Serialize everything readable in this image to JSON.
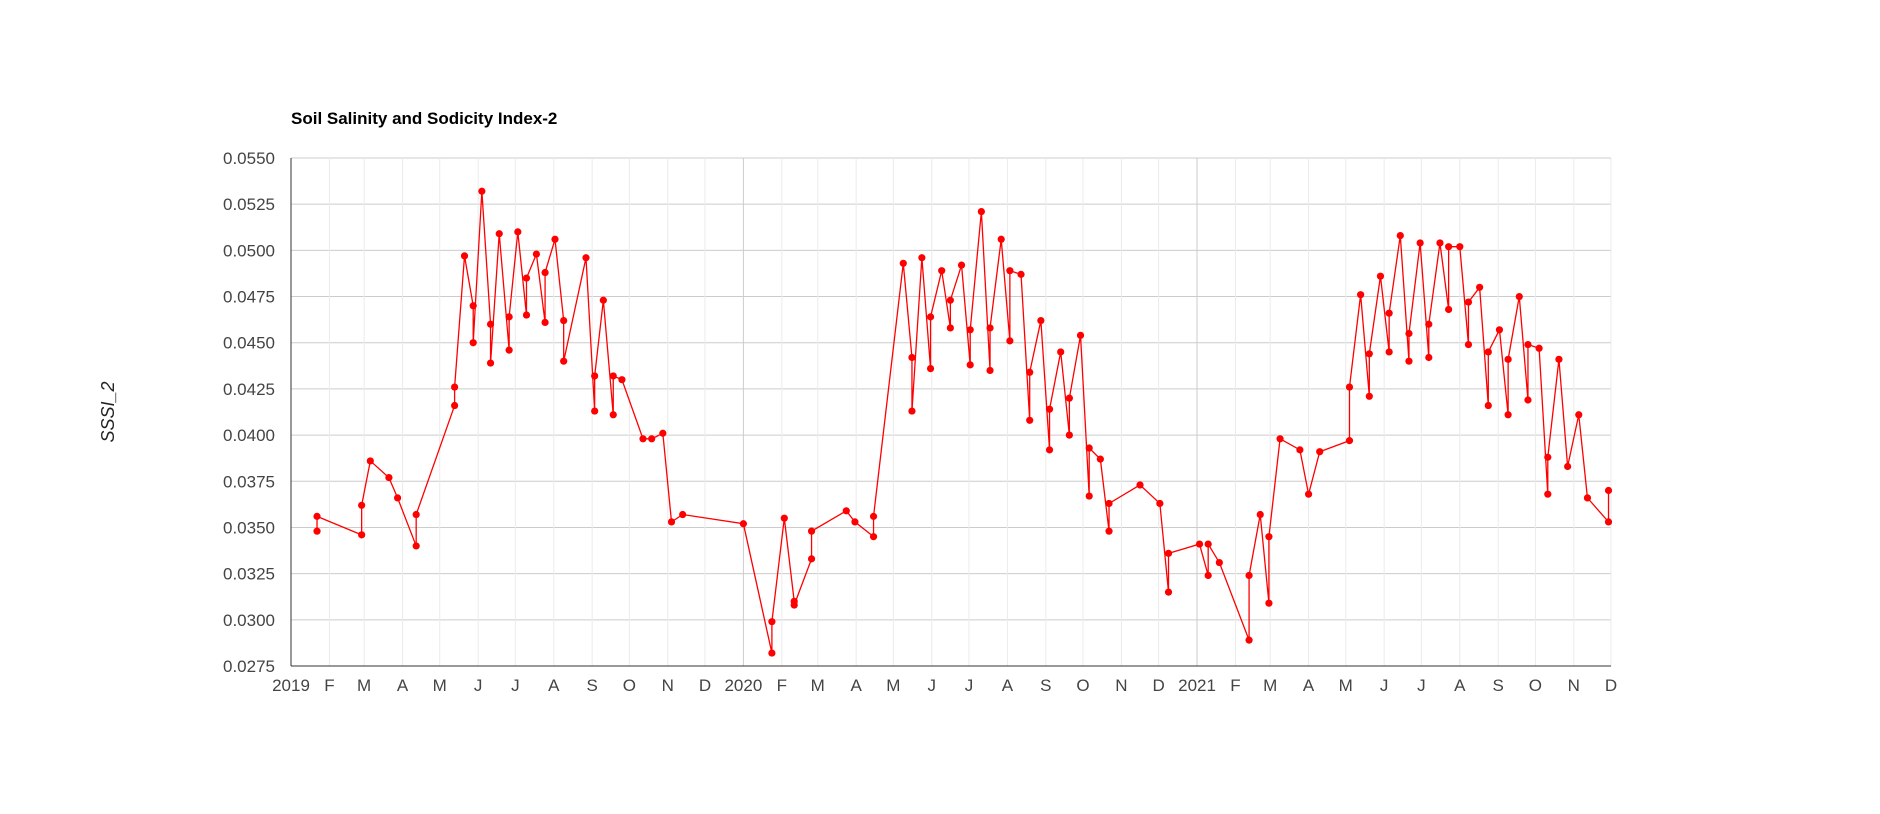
{
  "chart_data": {
    "type": "line",
    "title": "Soil Salinity and Sodicity Index-2",
    "xlabel": "",
    "ylabel": "SSSI_2",
    "ylim": [
      0.0275,
      0.055
    ],
    "yticks": [
      "0.0550",
      "0.0525",
      "0.0500",
      "0.0475",
      "0.0450",
      "0.0425",
      "0.0400",
      "0.0375",
      "0.0350",
      "0.0325",
      "0.0300",
      "0.0275"
    ],
    "xlim": [
      "2019-01-01",
      "2021-12-01"
    ],
    "xticks": [
      {
        "date": "2019-01-01",
        "label": "2019"
      },
      {
        "date": "2019-02-01",
        "label": "F"
      },
      {
        "date": "2019-03-01",
        "label": "M"
      },
      {
        "date": "2019-04-01",
        "label": "A"
      },
      {
        "date": "2019-05-01",
        "label": "M"
      },
      {
        "date": "2019-06-01",
        "label": "J"
      },
      {
        "date": "2019-07-01",
        "label": "J"
      },
      {
        "date": "2019-08-01",
        "label": "A"
      },
      {
        "date": "2019-09-01",
        "label": "S"
      },
      {
        "date": "2019-10-01",
        "label": "O"
      },
      {
        "date": "2019-11-01",
        "label": "N"
      },
      {
        "date": "2019-12-01",
        "label": "D"
      },
      {
        "date": "2020-01-01",
        "label": "2020"
      },
      {
        "date": "2020-02-01",
        "label": "F"
      },
      {
        "date": "2020-03-01",
        "label": "M"
      },
      {
        "date": "2020-04-01",
        "label": "A"
      },
      {
        "date": "2020-05-01",
        "label": "M"
      },
      {
        "date": "2020-06-01",
        "label": "J"
      },
      {
        "date": "2020-07-01",
        "label": "J"
      },
      {
        "date": "2020-08-01",
        "label": "A"
      },
      {
        "date": "2020-09-01",
        "label": "S"
      },
      {
        "date": "2020-10-01",
        "label": "O"
      },
      {
        "date": "2020-11-01",
        "label": "N"
      },
      {
        "date": "2020-12-01",
        "label": "D"
      },
      {
        "date": "2021-01-01",
        "label": "2021"
      },
      {
        "date": "2021-02-01",
        "label": "F"
      },
      {
        "date": "2021-03-01",
        "label": "M"
      },
      {
        "date": "2021-04-01",
        "label": "A"
      },
      {
        "date": "2021-05-01",
        "label": "M"
      },
      {
        "date": "2021-06-01",
        "label": "J"
      },
      {
        "date": "2021-07-01",
        "label": "J"
      },
      {
        "date": "2021-08-01",
        "label": "A"
      },
      {
        "date": "2021-09-01",
        "label": "S"
      },
      {
        "date": "2021-10-01",
        "label": "O"
      },
      {
        "date": "2021-11-01",
        "label": "N"
      },
      {
        "date": "2021-12-01",
        "label": "D"
      }
    ],
    "grid": true,
    "legend": "none",
    "series": [
      {
        "color": "#ff0000",
        "points": [
          [
            "2019-01-22",
            0.0348
          ],
          [
            "2019-01-22",
            0.0356
          ],
          [
            "2019-02-27",
            0.0346
          ],
          [
            "2019-02-27",
            0.0362
          ],
          [
            "2019-03-06",
            0.0386
          ],
          [
            "2019-03-21",
            0.0377
          ],
          [
            "2019-03-28",
            0.0366
          ],
          [
            "2019-04-12",
            0.034
          ],
          [
            "2019-04-12",
            0.0357
          ],
          [
            "2019-05-13",
            0.0416
          ],
          [
            "2019-05-13",
            0.0426
          ],
          [
            "2019-05-21",
            0.0497
          ],
          [
            "2019-05-28",
            0.047
          ],
          [
            "2019-05-28",
            0.045
          ],
          [
            "2019-06-04",
            0.0532
          ],
          [
            "2019-06-11",
            0.046
          ],
          [
            "2019-06-11",
            0.0439
          ],
          [
            "2019-06-18",
            0.0509
          ],
          [
            "2019-06-26",
            0.0446
          ],
          [
            "2019-06-26",
            0.0464
          ],
          [
            "2019-07-03",
            0.051
          ],
          [
            "2019-07-10",
            0.0465
          ],
          [
            "2019-07-10",
            0.0485
          ],
          [
            "2019-07-18",
            0.0498
          ],
          [
            "2019-07-25",
            0.0461
          ],
          [
            "2019-07-25",
            0.0488
          ],
          [
            "2019-08-02",
            0.0506
          ],
          [
            "2019-08-09",
            0.0462
          ],
          [
            "2019-08-09",
            0.044
          ],
          [
            "2019-08-27",
            0.0496
          ],
          [
            "2019-09-03",
            0.0413
          ],
          [
            "2019-09-03",
            0.0432
          ],
          [
            "2019-09-10",
            0.0473
          ],
          [
            "2019-09-18",
            0.0411
          ],
          [
            "2019-09-18",
            0.0432
          ],
          [
            "2019-09-25",
            0.043
          ],
          [
            "2019-10-12",
            0.0398
          ],
          [
            "2019-10-19",
            0.0398
          ],
          [
            "2019-10-28",
            0.0401
          ],
          [
            "2019-11-04",
            0.0353
          ],
          [
            "2019-11-13",
            0.0357
          ],
          [
            "2020-01-01",
            0.0352
          ],
          [
            "2020-01-24",
            0.0282
          ],
          [
            "2020-01-24",
            0.0299
          ],
          [
            "2020-02-03",
            0.0355
          ],
          [
            "2020-02-11",
            0.031
          ],
          [
            "2020-02-11",
            0.0308
          ],
          [
            "2020-02-25",
            0.0333
          ],
          [
            "2020-02-25",
            0.0348
          ],
          [
            "2020-03-24",
            0.0359
          ],
          [
            "2020-03-31",
            0.0353
          ],
          [
            "2020-04-15",
            0.0345
          ],
          [
            "2020-04-15",
            0.0356
          ],
          [
            "2020-05-09",
            0.0493
          ],
          [
            "2020-05-16",
            0.0442
          ],
          [
            "2020-05-16",
            0.0413
          ],
          [
            "2020-05-24",
            0.0496
          ],
          [
            "2020-05-31",
            0.0436
          ],
          [
            "2020-05-31",
            0.0464
          ],
          [
            "2020-06-09",
            0.0489
          ],
          [
            "2020-06-16",
            0.0458
          ],
          [
            "2020-06-16",
            0.0473
          ],
          [
            "2020-06-25",
            0.0492
          ],
          [
            "2020-07-02",
            0.0438
          ],
          [
            "2020-07-02",
            0.0457
          ],
          [
            "2020-07-11",
            0.0521
          ],
          [
            "2020-07-18",
            0.0435
          ],
          [
            "2020-07-18",
            0.0458
          ],
          [
            "2020-07-27",
            0.0506
          ],
          [
            "2020-08-03",
            0.0451
          ],
          [
            "2020-08-03",
            0.0489
          ],
          [
            "2020-08-12",
            0.0487
          ],
          [
            "2020-08-19",
            0.0408
          ],
          [
            "2020-08-19",
            0.0434
          ],
          [
            "2020-08-28",
            0.0462
          ],
          [
            "2020-09-04",
            0.0392
          ],
          [
            "2020-09-04",
            0.0414
          ],
          [
            "2020-09-13",
            0.0445
          ],
          [
            "2020-09-20",
            0.04
          ],
          [
            "2020-09-20",
            0.042
          ],
          [
            "2020-09-29",
            0.0454
          ],
          [
            "2020-10-06",
            0.0367
          ],
          [
            "2020-10-06",
            0.0393
          ],
          [
            "2020-10-15",
            0.0387
          ],
          [
            "2020-10-22",
            0.0348
          ],
          [
            "2020-10-22",
            0.0363
          ],
          [
            "2020-11-16",
            0.0373
          ],
          [
            "2020-12-02",
            0.0363
          ],
          [
            "2020-12-09",
            0.0315
          ],
          [
            "2020-12-09",
            0.0336
          ],
          [
            "2021-01-03",
            0.0341
          ],
          [
            "2021-01-10",
            0.0324
          ],
          [
            "2021-01-10",
            0.0341
          ],
          [
            "2021-01-19",
            0.0331
          ],
          [
            "2021-02-12",
            0.0289
          ],
          [
            "2021-02-12",
            0.0324
          ],
          [
            "2021-02-21",
            0.0357
          ],
          [
            "2021-02-28",
            0.0309
          ],
          [
            "2021-02-28",
            0.0345
          ],
          [
            "2021-03-09",
            0.0398
          ],
          [
            "2021-03-25",
            0.0392
          ],
          [
            "2021-04-01",
            0.0368
          ],
          [
            "2021-04-10",
            0.0391
          ],
          [
            "2021-05-04",
            0.0397
          ],
          [
            "2021-05-04",
            0.0426
          ],
          [
            "2021-05-13",
            0.0476
          ],
          [
            "2021-05-20",
            0.0421
          ],
          [
            "2021-05-20",
            0.0444
          ],
          [
            "2021-05-29",
            0.0486
          ],
          [
            "2021-06-05",
            0.0445
          ],
          [
            "2021-06-05",
            0.0466
          ],
          [
            "2021-06-14",
            0.0508
          ],
          [
            "2021-06-21",
            0.044
          ],
          [
            "2021-06-21",
            0.0455
          ],
          [
            "2021-06-30",
            0.0504
          ],
          [
            "2021-07-07",
            0.0442
          ],
          [
            "2021-07-07",
            0.046
          ],
          [
            "2021-07-16",
            0.0504
          ],
          [
            "2021-07-23",
            0.0468
          ],
          [
            "2021-07-23",
            0.0502
          ],
          [
            "2021-08-01",
            0.0502
          ],
          [
            "2021-08-08",
            0.0449
          ],
          [
            "2021-08-08",
            0.0472
          ],
          [
            "2021-08-17",
            0.048
          ],
          [
            "2021-08-24",
            0.0416
          ],
          [
            "2021-08-24",
            0.0445
          ],
          [
            "2021-09-02",
            0.0457
          ],
          [
            "2021-09-09",
            0.0411
          ],
          [
            "2021-09-09",
            0.0441
          ],
          [
            "2021-09-18",
            0.0475
          ],
          [
            "2021-09-25",
            0.0419
          ],
          [
            "2021-09-25",
            0.0449
          ],
          [
            "2021-10-04",
            0.0447
          ],
          [
            "2021-10-11",
            0.0368
          ],
          [
            "2021-10-11",
            0.0388
          ],
          [
            "2021-10-20",
            0.0441
          ],
          [
            "2021-10-27",
            0.0383
          ],
          [
            "2021-11-05",
            0.0411
          ],
          [
            "2021-11-12",
            0.0366
          ],
          [
            "2021-11-29",
            0.0353
          ],
          [
            "2021-11-29",
            0.037
          ]
        ]
      }
    ]
  }
}
